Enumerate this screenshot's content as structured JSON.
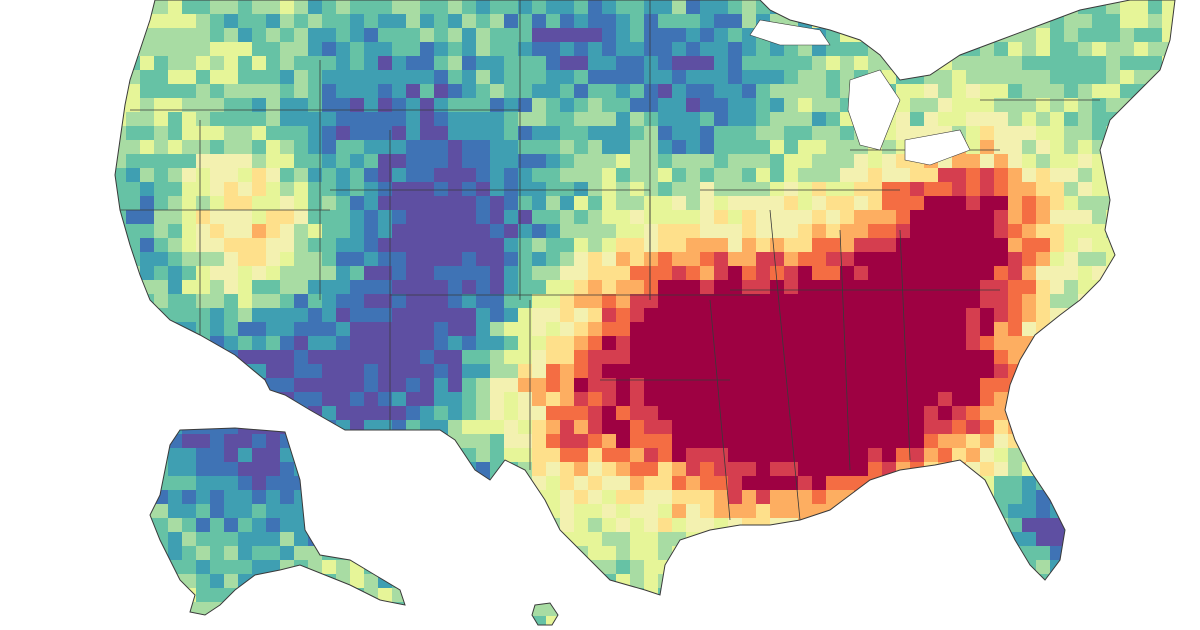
{
  "map": {
    "type": "choropleth",
    "units": "county",
    "colors": {
      "background": "#ffffff",
      "border": "#3a3a3a",
      "scale": [
        "#5e4fa2",
        "#3f73b5",
        "#3f9fb2",
        "#66c2a5",
        "#a8dca3",
        "#e6f598",
        "#f3f1b0",
        "#fee08b",
        "#fdae61",
        "#f46d43",
        "#d53e4f",
        "#9e0142"
      ]
    },
    "regions": [
      {
        "name": "contiguous-us"
      },
      {
        "name": "alaska"
      },
      {
        "name": "hawaii"
      }
    ],
    "hotspots": [
      {
        "name": "mississippi-delta"
      },
      {
        "name": "oklahoma"
      },
      {
        "name": "appalachia"
      },
      {
        "name": "south-nevada"
      }
    ]
  }
}
